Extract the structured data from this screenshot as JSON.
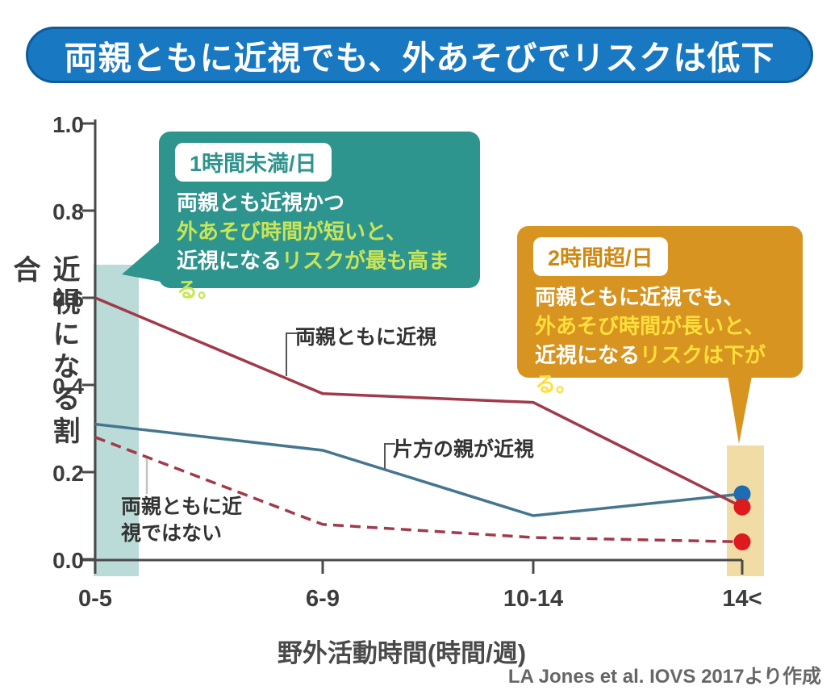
{
  "callouts": {
    "low": {
      "badge": "1時間未満/日",
      "lines": [
        {
          "segments": [
            {
              "t": "両親とも近視かつ",
              "highlight": false
            }
          ]
        },
        {
          "segments": [
            {
              "t": "外あそび時間が短いと、",
              "highlight": true
            }
          ]
        },
        {
          "segments": [
            {
              "t": "近視になる",
              "highlight": false
            },
            {
              "t": "リスクが最も高まる。",
              "highlight": true
            }
          ]
        }
      ]
    },
    "high": {
      "badge": "2時間超/日",
      "lines": [
        {
          "segments": [
            {
              "t": "両親ともに近視でも、",
              "highlight": false
            }
          ]
        },
        {
          "segments": [
            {
              "t": "外あそび時間が長いと、",
              "highlight": true
            }
          ]
        },
        {
          "segments": [
            {
              "t": "近視になる",
              "highlight": false
            },
            {
              "t": "リスクは下がる。",
              "highlight": true
            }
          ]
        }
      ]
    }
  },
  "source": "LA Jones et al. IOVS 2017より作成",
  "colors": {
    "banner_blue": "#1878c2",
    "banner_border": "#0d5b9b",
    "teal_box": "#2e948e",
    "teal_highlight_text": "#c8e556",
    "orange_box": "#d79420",
    "orange_highlight_text": "#ffdf3b",
    "low_band": "#badbd7",
    "high_band": "#f2dca6",
    "axis_gray": "#4a4a4a"
  },
  "chart_data": {
    "type": "line",
    "title": "両親ともに近視でも、外あそびでリスクは低下",
    "categories": [
      "0-5",
      "6-9",
      "10-14",
      "14<"
    ],
    "series": [
      {
        "name": "両親ともに近視",
        "style": "solid",
        "color": "#a13a4b",
        "dot_color": "#dd1a1e",
        "values": [
          0.6,
          0.38,
          0.36,
          0.12
        ]
      },
      {
        "name": "片方の親が近視",
        "style": "solid",
        "color": "#46768f",
        "dot_color": "#1e6cb3",
        "values": [
          0.31,
          0.25,
          0.1,
          0.15
        ]
      },
      {
        "name": "両親ともに近視ではない",
        "style": "dashed",
        "color": "#a13a4b",
        "dot_color": "#dd1a1e",
        "values": [
          0.28,
          0.08,
          0.05,
          0.04
        ]
      }
    ],
    "xlabel": "野外活動時間(時間/週)",
    "ylabel": "近視になる割合",
    "ylim": [
      0.0,
      1.0
    ],
    "y_ticks": [
      "1.0",
      "0.8",
      "0.6",
      "0.4",
      "0.2",
      "0.0"
    ],
    "grid": false,
    "legend_position": "inline-labels",
    "highlight_bands": [
      {
        "category": "0-5",
        "label": "1時間未満/日",
        "color": "#badbd7"
      },
      {
        "category": "14<",
        "label": "2時間超/日",
        "color": "#f2dca6"
      }
    ]
  }
}
